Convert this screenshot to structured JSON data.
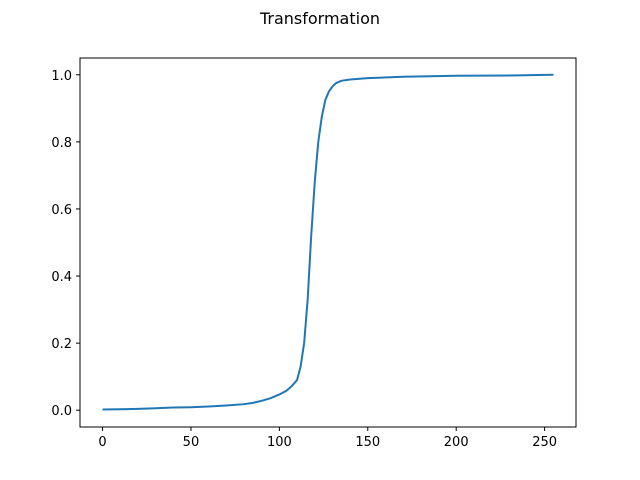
{
  "chart_data": {
    "type": "line",
    "title": "Transformation",
    "xlabel": "",
    "ylabel": "",
    "xlim": [
      -12.75,
      267.75
    ],
    "ylim": [
      -0.05,
      1.05
    ],
    "x_ticks": [
      0,
      50,
      100,
      150,
      200,
      250
    ],
    "y_ticks": [
      0.0,
      0.2,
      0.4,
      0.6,
      0.8,
      1.0
    ],
    "x_tick_labels": [
      "0",
      "50",
      "100",
      "150",
      "200",
      "250"
    ],
    "y_tick_labels": [
      "0.0",
      "0.2",
      "0.4",
      "0.6",
      "0.8",
      "1.0"
    ],
    "grid": false,
    "series": [
      {
        "color": "#1f77b4",
        "x": [
          0,
          10,
          20,
          30,
          40,
          50,
          60,
          70,
          80,
          85,
          90,
          95,
          100,
          104,
          107,
          110,
          112,
          114,
          116,
          118,
          120,
          122,
          124,
          126,
          128,
          130,
          132,
          135,
          140,
          150,
          170,
          200,
          230,
          255
        ],
        "y": [
          0.002,
          0.003,
          0.004,
          0.006,
          0.008,
          0.009,
          0.011,
          0.014,
          0.018,
          0.022,
          0.028,
          0.036,
          0.047,
          0.058,
          0.072,
          0.09,
          0.13,
          0.2,
          0.33,
          0.52,
          0.68,
          0.8,
          0.875,
          0.925,
          0.95,
          0.965,
          0.975,
          0.982,
          0.986,
          0.99,
          0.994,
          0.997,
          0.998,
          1.0
        ]
      }
    ]
  }
}
